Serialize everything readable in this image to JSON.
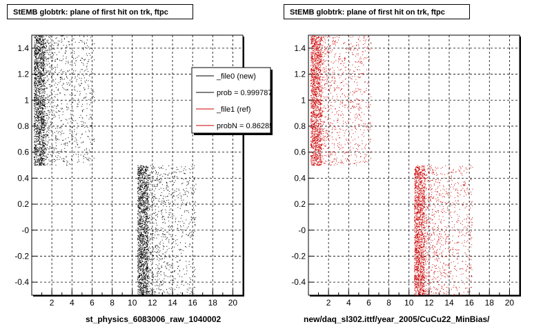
{
  "panels": [
    {
      "title": "StEMB globtrk: plane of first hit on trk, ftpc",
      "xlabel": "st_physics_6083006_raw_1040002",
      "color": "#000000",
      "legend": [
        {
          "label": "_file0 (new)",
          "color": "#000000"
        },
        {
          "label": "prob = 0.999787",
          "color": "#000000"
        },
        {
          "label": "_file1 (ref)",
          "color": "#cc0000"
        },
        {
          "label": "probN = 0.862859",
          "color": "#cc0000"
        }
      ]
    },
    {
      "title": "StEMB globtrk: plane of first hit on trk, ftpc",
      "xlabel": "new/daq_sl302.ittf/year_2005/CuCu22_MinBias/",
      "color": "#cc0000",
      "legend": []
    }
  ],
  "chart_data": [
    {
      "type": "scatter",
      "title": "StEMB globtrk: plane of first hit on trk, ftpc",
      "xlabel": "st_physics_6083006_raw_1040002",
      "ylabel": "",
      "xlim": [
        0,
        21
      ],
      "ylim": [
        -0.5,
        1.5
      ],
      "xticks": [
        "2",
        "4",
        "6",
        "8",
        "10",
        "12",
        "14",
        "16",
        "18",
        "20"
      ],
      "yticks": [
        "-0.4",
        "-0.2",
        "-0",
        "0.2",
        "0.4",
        "0.6",
        "0.8",
        "1",
        "1.2",
        "1.4"
      ],
      "grid": true,
      "legend_position": "top-right",
      "series": [
        {
          "name": "_file0 (new)",
          "color": "#000000",
          "clusters": [
            {
              "x": [
                0.2,
                6.2
              ],
              "y": [
                0.5,
                1.5
              ],
              "dense_edge": [
                0.2,
                1.2
              ]
            },
            {
              "x": [
                10.5,
                16.3
              ],
              "y": [
                -0.5,
                0.5
              ],
              "dense_edge": [
                10.5,
                11.5
              ]
            }
          ]
        }
      ]
    },
    {
      "type": "scatter",
      "title": "StEMB globtrk: plane of first hit on trk, ftpc",
      "xlabel": "new/daq_sl302.ittf/year_2005/CuCu22_MinBias/",
      "ylabel": "",
      "xlim": [
        0,
        21
      ],
      "ylim": [
        -0.5,
        1.5
      ],
      "xticks": [
        "2",
        "4",
        "6",
        "8",
        "10",
        "12",
        "14",
        "16",
        "18",
        "20"
      ],
      "yticks": [
        "-0.4",
        "-0.2",
        "-0",
        "0.2",
        "0.4",
        "0.6",
        "0.8",
        "1",
        "1.2",
        "1.4"
      ],
      "grid": true,
      "series": [
        {
          "name": "_file1 (ref)",
          "color": "#cc0000",
          "clusters": [
            {
              "x": [
                0.2,
                6.2
              ],
              "y": [
                0.5,
                1.5
              ],
              "dense_edge": [
                0.2,
                1.2
              ]
            },
            {
              "x": [
                10.5,
                16.3
              ],
              "y": [
                -0.5,
                0.5
              ],
              "dense_edge": [
                10.5,
                11.5
              ]
            }
          ]
        }
      ]
    }
  ]
}
